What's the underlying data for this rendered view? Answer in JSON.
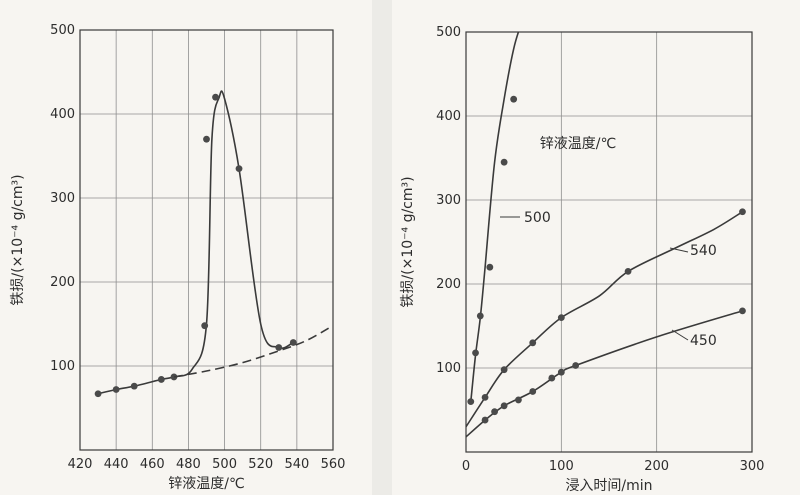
{
  "chart_data": [
    {
      "type": "line",
      "xlabel": "锌液温度/℃",
      "ylabel": "铁损/(×10⁻⁴ g/cm³)",
      "xlim": [
        420,
        560
      ],
      "ylim": [
        0,
        500
      ],
      "xticks": [
        420,
        440,
        460,
        480,
        500,
        520,
        540,
        560
      ],
      "yticks": [
        100,
        200,
        300,
        400,
        500
      ],
      "grid": true,
      "series": [
        {
          "name": "",
          "x": [
            430,
            440,
            450,
            465,
            472,
            482,
            490,
            493,
            497,
            500,
            508,
            520,
            530,
            538
          ],
          "y": [
            67,
            72,
            76,
            84,
            87,
            96,
            150,
            370,
            420,
            418,
            335,
            150,
            122,
            128
          ],
          "points_x": [
            430,
            440,
            450,
            465,
            472,
            489,
            490,
            495,
            508,
            530,
            538
          ],
          "points_y": [
            67,
            72,
            76,
            84,
            87,
            148,
            370,
            420,
            335,
            122,
            128
          ]
        },
        {
          "name": "",
          "style": "dashed",
          "x": [
            472,
            490,
            510,
            530,
            545,
            560
          ],
          "y": [
            87,
            94,
            104,
            118,
            130,
            148
          ]
        }
      ]
    },
    {
      "type": "line",
      "xlabel": "浸入时间/min",
      "ylabel": "铁损/(×10⁻⁴ g/cm³)",
      "xlim": [
        0,
        300
      ],
      "ylim": [
        0,
        500
      ],
      "xticks": [
        0,
        100,
        200,
        300
      ],
      "yticks": [
        100,
        200,
        300,
        400,
        500
      ],
      "grid": true,
      "annotation": "锌液温度/℃",
      "series": [
        {
          "name": "500",
          "x": [
            5,
            10,
            15,
            20,
            30,
            40,
            50,
            58
          ],
          "y": [
            60,
            115,
            160,
            220,
            345,
            420,
            480,
            510
          ],
          "points_x": [
            5,
            10,
            15,
            25,
            40,
            50
          ],
          "points_y": [
            60,
            118,
            162,
            220,
            345,
            420
          ]
        },
        {
          "name": "540",
          "x": [
            0,
            20,
            40,
            70,
            100,
            140,
            170,
            220,
            260,
            290
          ],
          "y": [
            30,
            65,
            98,
            130,
            160,
            186,
            215,
            243,
            265,
            286
          ],
          "points_x": [
            20,
            40,
            70,
            100,
            170,
            290
          ],
          "points_y": [
            65,
            98,
            130,
            160,
            215,
            286
          ]
        },
        {
          "name": "450",
          "x": [
            0,
            20,
            40,
            70,
            100,
            115,
            200,
            290
          ],
          "y": [
            18,
            38,
            55,
            72,
            95,
            103,
            137,
            168
          ],
          "points_x": [
            20,
            30,
            40,
            55,
            70,
            90,
            100,
            115,
            290
          ],
          "points_y": [
            38,
            48,
            55,
            62,
            72,
            88,
            95,
            103,
            168
          ]
        }
      ]
    }
  ]
}
